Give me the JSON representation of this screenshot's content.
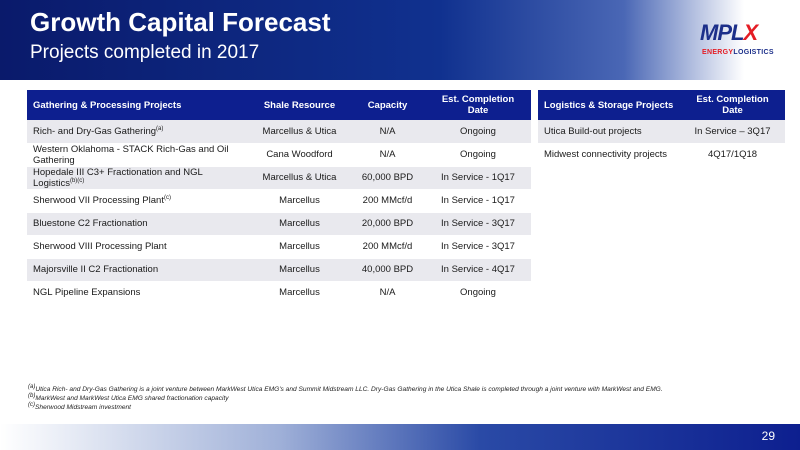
{
  "header": {
    "title": "Growth Capital Forecast",
    "subtitle": "Projects completed in 2017"
  },
  "logo": {
    "main_left": "MPL",
    "main_right": "X",
    "sub_left": "ENERGY",
    "sub_right": "LOGISTICS"
  },
  "gathering_table": {
    "headers": [
      "Gathering & Processing Projects",
      "Shale Resource",
      "Capacity",
      "Est. Completion Date"
    ],
    "rows": [
      {
        "project": "Rich- and Dry-Gas Gathering",
        "note": "(a)",
        "shale": "Marcellus & Utica",
        "capacity": "N/A",
        "date": "Ongoing"
      },
      {
        "project": "Western Oklahoma - STACK Rich-Gas and Oil Gathering",
        "note": "",
        "shale": "Cana Woodford",
        "capacity": "N/A",
        "date": "Ongoing"
      },
      {
        "project": "Hopedale III C3+ Fractionation and NGL Logistics",
        "note": "(b)(c)",
        "shale": "Marcellus & Utica",
        "capacity": "60,000 BPD",
        "date": "In Service - 1Q17"
      },
      {
        "project": "Sherwood VII Processing Plant",
        "note": "(c)",
        "shale": "Marcellus",
        "capacity": "200 MMcf/d",
        "date": "In Service - 1Q17"
      },
      {
        "project": "Bluestone C2 Fractionation",
        "note": "",
        "shale": "Marcellus",
        "capacity": "20,000 BPD",
        "date": "In Service - 3Q17"
      },
      {
        "project": "Sherwood VIII Processing Plant",
        "note": "",
        "shale": "Marcellus",
        "capacity": "200 MMcf/d",
        "date": "In Service - 3Q17"
      },
      {
        "project": "Majorsville II C2 Fractionation",
        "note": "",
        "shale": "Marcellus",
        "capacity": "40,000 BPD",
        "date": "In Service - 4Q17"
      },
      {
        "project": "NGL Pipeline Expansions",
        "note": "",
        "shale": "Marcellus",
        "capacity": "N/A",
        "date": "Ongoing"
      }
    ]
  },
  "logistics_table": {
    "headers": [
      "Logistics & Storage Projects",
      "Est. Completion Date"
    ],
    "rows": [
      {
        "project": "Utica Build-out projects",
        "date": "In Service – 3Q17"
      },
      {
        "project": "Midwest connectivity projects",
        "date": "4Q17/1Q18"
      }
    ]
  },
  "footnotes": [
    {
      "mark": "(a)",
      "text": "Utica Rich- and Dry-Gas Gathering is a joint venture between MarkWest Utica EMG's and Summit Midstream LLC. Dry-Gas Gathering in the Utica Shale is completed through a joint venture with MarkWest and EMG."
    },
    {
      "mark": "(b)",
      "text": "MarkWest and MarkWest Utica EMG shared fractionation capacity"
    },
    {
      "mark": "(c)",
      "text": "Sherwood Midstream investment"
    }
  ],
  "footer": {
    "page_number": "29"
  }
}
